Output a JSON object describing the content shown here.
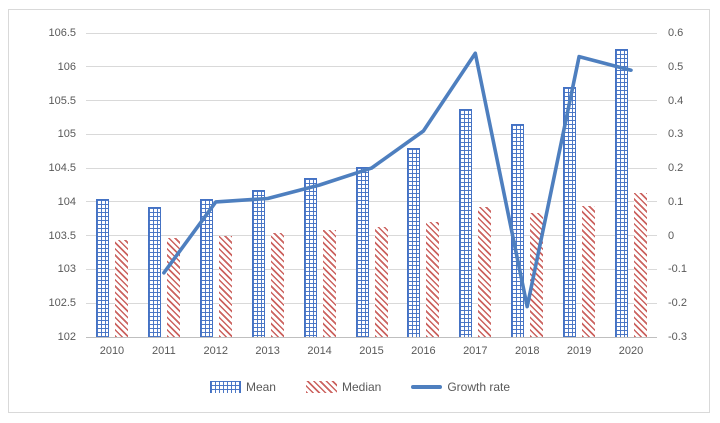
{
  "chart_data": {
    "type": "combo-bar-line",
    "title": "",
    "categories": [
      "2010",
      "2011",
      "2012",
      "2013",
      "2014",
      "2015",
      "2016",
      "2017",
      "2018",
      "2019",
      "2020"
    ],
    "series": [
      {
        "name": "Mean",
        "type": "bar",
        "axis": "left",
        "pattern": "blue-grid-crosshatch",
        "values": [
          104.04,
          103.93,
          104.04,
          104.18,
          104.36,
          104.52,
          104.8,
          105.37,
          105.15,
          105.7,
          106.27
        ]
      },
      {
        "name": "Median",
        "type": "bar",
        "axis": "left",
        "pattern": "red-diagonal-hatch",
        "values": [
          103.44,
          103.46,
          103.5,
          103.54,
          103.58,
          103.63,
          103.7,
          103.92,
          103.84,
          103.94,
          104.13
        ]
      },
      {
        "name": "Growth rate",
        "type": "line",
        "axis": "right",
        "values": [
          null,
          -0.11,
          0.1,
          0.11,
          0.15,
          0.2,
          0.31,
          0.54,
          -0.21,
          0.53,
          0.49
        ]
      }
    ],
    "left_axis": {
      "min": 102,
      "max": 106.5,
      "step": 0.5,
      "tick_labels": [
        "106.5",
        "106",
        "105.5",
        "105",
        "104.5",
        "104",
        "103.5",
        "103",
        "102.5",
        "102"
      ]
    },
    "right_axis": {
      "min": -0.3,
      "max": 0.6,
      "step": 0.1,
      "tick_labels": [
        "0.6",
        "0.5",
        "0.4",
        "0.3",
        "0.2",
        "0.1",
        "0",
        "-0.1",
        "-0.2",
        "-0.3"
      ]
    },
    "legend": {
      "position": "bottom",
      "entries": [
        "Mean",
        "Median",
        "Growth rate"
      ]
    },
    "grid": true,
    "colors": {
      "mean_bar": "#4472C4",
      "median_bar": "#C6524E",
      "growth_line": "#4E7FBF",
      "gridline": "#D9D9D9",
      "axis_text": "#595959"
    }
  }
}
